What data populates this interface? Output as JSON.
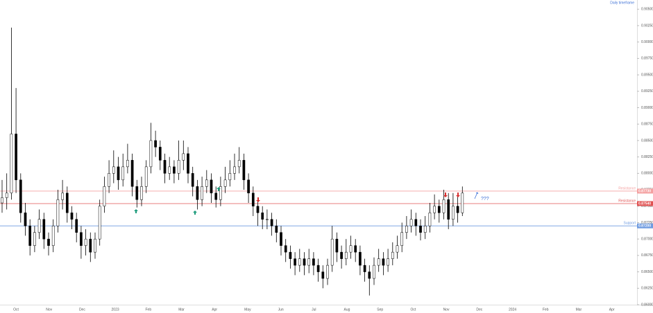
{
  "chart_data": {
    "type": "candlestick",
    "title": "Daily timeframe",
    "annotation": "???",
    "x_labels": [
      "Oct",
      "Nov",
      "Dec",
      "2023",
      "Feb",
      "Mar",
      "Apr",
      "May",
      "Jun",
      "Jul",
      "Aug",
      "Sep",
      "Oct",
      "Nov",
      "Dec",
      "2024",
      "Feb",
      "Mar",
      "Apr"
    ],
    "open": [
      0.8755,
      0.8763,
      0.877,
      0.886,
      0.879,
      0.874,
      0.872,
      0.869,
      0.871,
      0.873,
      0.87,
      0.869,
      0.872,
      0.876,
      0.877,
      0.874,
      0.873,
      0.871,
      0.869,
      0.87,
      0.868,
      0.87,
      0.875,
      0.878,
      0.88,
      0.881,
      0.879,
      0.881,
      0.882,
      0.878,
      0.876,
      0.878,
      0.881,
      0.885,
      0.884,
      0.882,
      0.88,
      0.881,
      0.88,
      0.882,
      0.883,
      0.88,
      0.878,
      0.876,
      0.878,
      0.879,
      0.877,
      0.876,
      0.878,
      0.879,
      0.88,
      0.881,
      0.882,
      0.879,
      0.877,
      0.875,
      0.874,
      0.873,
      0.873,
      0.872,
      0.871,
      0.869,
      0.868,
      0.867,
      0.866,
      0.867,
      0.866,
      0.867,
      0.866,
      0.865,
      0.864,
      0.866,
      0.87,
      0.868,
      0.867,
      0.868,
      0.869,
      0.868,
      0.866,
      0.865,
      0.864,
      0.866,
      0.867,
      0.866,
      0.867,
      0.868,
      0.869,
      0.871,
      0.872,
      0.873,
      0.872,
      0.871,
      0.872,
      0.874,
      0.875,
      0.874,
      0.876,
      0.873,
      0.875,
      0.874
    ],
    "high": [
      0.879,
      0.88,
      0.9022,
      0.893,
      0.88,
      0.8755,
      0.873,
      0.872,
      0.8745,
      0.874,
      0.871,
      0.873,
      0.8775,
      0.879,
      0.878,
      0.875,
      0.874,
      0.872,
      0.8715,
      0.871,
      0.871,
      0.876,
      0.8795,
      0.882,
      0.8835,
      0.8825,
      0.883,
      0.8845,
      0.883,
      0.879,
      0.8795,
      0.882,
      0.8877,
      0.8865,
      0.885,
      0.883,
      0.8825,
      0.882,
      0.885,
      0.885,
      0.884,
      0.881,
      0.879,
      0.8795,
      0.8805,
      0.88,
      0.878,
      0.8795,
      0.881,
      0.882,
      0.883,
      0.884,
      0.883,
      0.88,
      0.878,
      0.876,
      0.875,
      0.8745,
      0.874,
      0.873,
      0.872,
      0.87,
      0.869,
      0.868,
      0.8685,
      0.868,
      0.8685,
      0.868,
      0.867,
      0.866,
      0.867,
      0.872,
      0.871,
      0.869,
      0.87,
      0.8705,
      0.87,
      0.869,
      0.867,
      0.866,
      0.8672,
      0.8685,
      0.868,
      0.8685,
      0.8695,
      0.8705,
      0.8725,
      0.8735,
      0.8745,
      0.874,
      0.873,
      0.8735,
      0.8755,
      0.8768,
      0.876,
      0.8775,
      0.877,
      0.877,
      0.8765,
      0.878
    ],
    "low": [
      0.874,
      0.8745,
      0.876,
      0.877,
      0.8725,
      0.8705,
      0.8675,
      0.868,
      0.87,
      0.8685,
      0.8675,
      0.868,
      0.871,
      0.8745,
      0.8725,
      0.8715,
      0.8695,
      0.867,
      0.8675,
      0.8665,
      0.867,
      0.869,
      0.874,
      0.877,
      0.8785,
      0.8775,
      0.878,
      0.88,
      0.8765,
      0.8748,
      0.875,
      0.877,
      0.88,
      0.8825,
      0.8805,
      0.8785,
      0.879,
      0.8785,
      0.879,
      0.8805,
      0.8785,
      0.8765,
      0.8745,
      0.875,
      0.877,
      0.8755,
      0.8748,
      0.875,
      0.877,
      0.878,
      0.879,
      0.88,
      0.8775,
      0.8755,
      0.8735,
      0.872,
      0.8715,
      0.8715,
      0.8705,
      0.8695,
      0.8675,
      0.8665,
      0.8655,
      0.8645,
      0.865,
      0.8645,
      0.8648,
      0.8645,
      0.8635,
      0.8625,
      0.863,
      0.865,
      0.8665,
      0.8655,
      0.866,
      0.867,
      0.8665,
      0.8645,
      0.8635,
      0.8614,
      0.863,
      0.865,
      0.8645,
      0.865,
      0.866,
      0.867,
      0.868,
      0.87,
      0.871,
      0.8705,
      0.8698,
      0.87,
      0.871,
      0.873,
      0.8725,
      0.873,
      0.8715,
      0.872,
      0.8725,
      0.8735
    ],
    "close": [
      0.8763,
      0.877,
      0.886,
      0.879,
      0.874,
      0.872,
      0.869,
      0.871,
      0.873,
      0.87,
      0.869,
      0.872,
      0.876,
      0.877,
      0.874,
      0.873,
      0.871,
      0.869,
      0.87,
      0.868,
      0.87,
      0.875,
      0.878,
      0.88,
      0.881,
      0.879,
      0.881,
      0.882,
      0.878,
      0.876,
      0.878,
      0.881,
      0.885,
      0.884,
      0.882,
      0.88,
      0.881,
      0.88,
      0.882,
      0.883,
      0.88,
      0.878,
      0.876,
      0.878,
      0.879,
      0.877,
      0.876,
      0.878,
      0.879,
      0.88,
      0.881,
      0.882,
      0.879,
      0.877,
      0.875,
      0.874,
      0.873,
      0.873,
      0.872,
      0.871,
      0.869,
      0.868,
      0.867,
      0.866,
      0.867,
      0.866,
      0.867,
      0.866,
      0.865,
      0.864,
      0.866,
      0.87,
      0.868,
      0.867,
      0.868,
      0.869,
      0.868,
      0.866,
      0.865,
      0.864,
      0.866,
      0.867,
      0.866,
      0.867,
      0.868,
      0.869,
      0.871,
      0.872,
      0.873,
      0.872,
      0.871,
      0.872,
      0.874,
      0.875,
      0.874,
      0.876,
      0.873,
      0.875,
      0.874,
      0.877
    ],
    "up_color": "#ffffff",
    "down_color": "#000000",
    "wick_color": "#000000",
    "ylim": [
      0.86,
      0.9064
    ],
    "yticks": [
      {
        "value": 0.86,
        "label": "0.86000"
      },
      {
        "value": 0.8625,
        "label": "0.86250"
      },
      {
        "value": 0.865,
        "label": "0.86500"
      },
      {
        "value": 0.8675,
        "label": "0.86750"
      },
      {
        "value": 0.87,
        "label": "0.87000"
      },
      {
        "value": 0.8725,
        "label": "0.87250"
      },
      {
        "value": 0.875,
        "label": "0.87500"
      },
      {
        "value": 0.8775,
        "label": "0.87750"
      },
      {
        "value": 0.88,
        "label": "0.88000"
      },
      {
        "value": 0.8825,
        "label": "0.88250"
      },
      {
        "value": 0.885,
        "label": "0.88500"
      },
      {
        "value": 0.8875,
        "label": "0.88750"
      },
      {
        "value": 0.89,
        "label": "0.89000"
      },
      {
        "value": 0.8925,
        "label": "0.89250"
      },
      {
        "value": 0.895,
        "label": "0.89500"
      },
      {
        "value": 0.8975,
        "label": "0.89750"
      },
      {
        "value": 0.9,
        "label": "0.90000"
      },
      {
        "value": 0.9025,
        "label": "0.90250"
      },
      {
        "value": 0.905,
        "label": "0.90500"
      }
    ],
    "levels": [
      {
        "name": "Resistance",
        "value": 0.8773,
        "label": "0.87730",
        "color": "#f4a0a0"
      },
      {
        "name": "Resistance",
        "value": 0.8754,
        "label": "0.87540",
        "color": "#e05050"
      },
      {
        "name": "Support",
        "value": 0.872,
        "label": "0.87200",
        "color": "#6f9be0"
      }
    ]
  }
}
